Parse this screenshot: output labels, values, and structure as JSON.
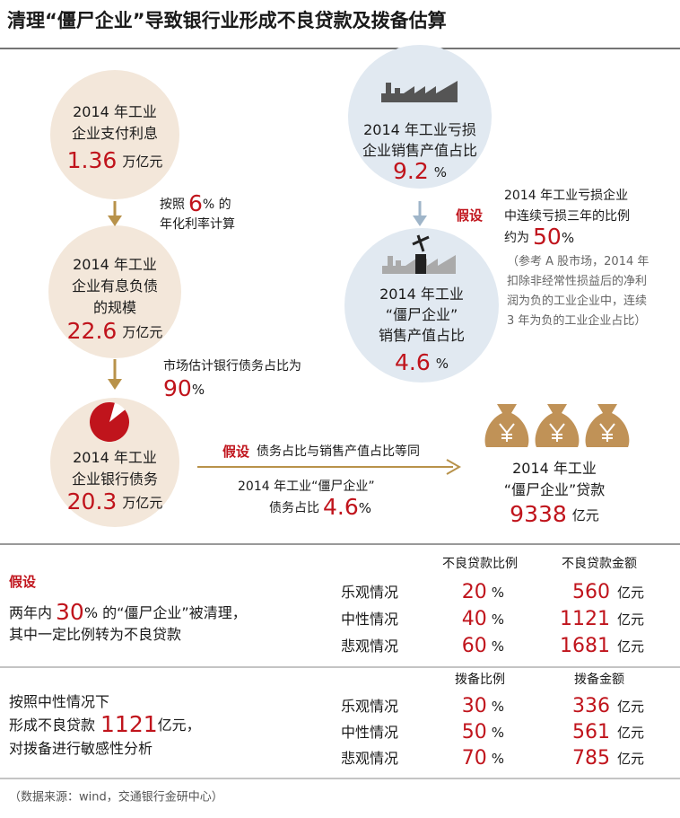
{
  "title": "清理“僵尸企业”导致银行业形成不良贷款及拨备估算",
  "left": {
    "interest": {
      "lines": [
        "2014 年工业",
        "企业支付利息"
      ],
      "value": 1.36,
      "unit": "万亿元"
    },
    "rate_note": {
      "prefix": "按照",
      "value": 6,
      "suffix": "% 的",
      "line2": "年化利率计算"
    },
    "debt": {
      "lines": [
        "2014 年工业",
        "企业有息负债",
        "的规模"
      ],
      "value": 22.6,
      "unit": "万亿元"
    },
    "bank_note": {
      "text": "市场估计银行债务占比为",
      "value": 90,
      "unit": "%"
    },
    "bank_debt": {
      "lines": [
        "2014 年工业",
        "企业银行债务"
      ],
      "value": 20.3,
      "unit": "万亿元"
    }
  },
  "right": {
    "loss_share": {
      "lines": [
        "2014 年工业亏损",
        "企业销售产值占比"
      ],
      "value": 9.2,
      "unit": "%"
    },
    "assumption": {
      "tag": "假设",
      "lines": [
        "2014 年工业亏损企业",
        "中连续亏损三年的比例"
      ],
      "prefix": "约为",
      "value": 50,
      "unit": "%",
      "note": [
        "（参考 A 股市场，2014 年",
        "扣除非经常性损益后的净利",
        "润为负的工业企业中，连续",
        "3 年为负的工业企业占比）"
      ]
    },
    "zombie_share": {
      "lines": [
        "2014 年工业",
        "“僵尸企业”",
        "销售产值占比"
      ],
      "value": 4.6,
      "unit": "%"
    }
  },
  "link": {
    "tag": "假设",
    "text": "债务占比与销售产值占比等同",
    "line1": "2014 年工业“僵尸企业”",
    "prefix": "债务占比",
    "value": 4.6,
    "unit": "%"
  },
  "result": {
    "lines": [
      "2014 年工业",
      "“僵尸企业”贷款"
    ],
    "value": 9338,
    "unit": "亿元"
  },
  "npl": {
    "tag": "假设",
    "prefix": "两年内",
    "value": 30,
    "suffix": "% 的“僵尸企业”被清理，",
    "line2": "其中一定比例转为不良贷款",
    "headers": [
      "不良贷款比例",
      "不良贷款金额"
    ],
    "rows": [
      [
        "乐观情况",
        20,
        560
      ],
      [
        "中性情况",
        40,
        1121
      ],
      [
        "悲观情况",
        60,
        1681
      ]
    ],
    "pct_unit": "%",
    "amount_unit": "亿元"
  },
  "provision": {
    "line1": "按照中性情况下",
    "prefix": "形成不良贷款",
    "value": 1121,
    "suffix": "亿元，",
    "line3": "对拨备进行敏感性分析",
    "headers": [
      "拨备比例",
      "拨备金额"
    ],
    "rows": [
      [
        "乐观情况",
        30,
        336
      ],
      [
        "中性情况",
        50,
        561
      ],
      [
        "悲观情况",
        70,
        785
      ]
    ],
    "pct_unit": "%",
    "amount_unit": "亿元"
  },
  "source": "（数据来源：wind，交通银行金研中心）"
}
